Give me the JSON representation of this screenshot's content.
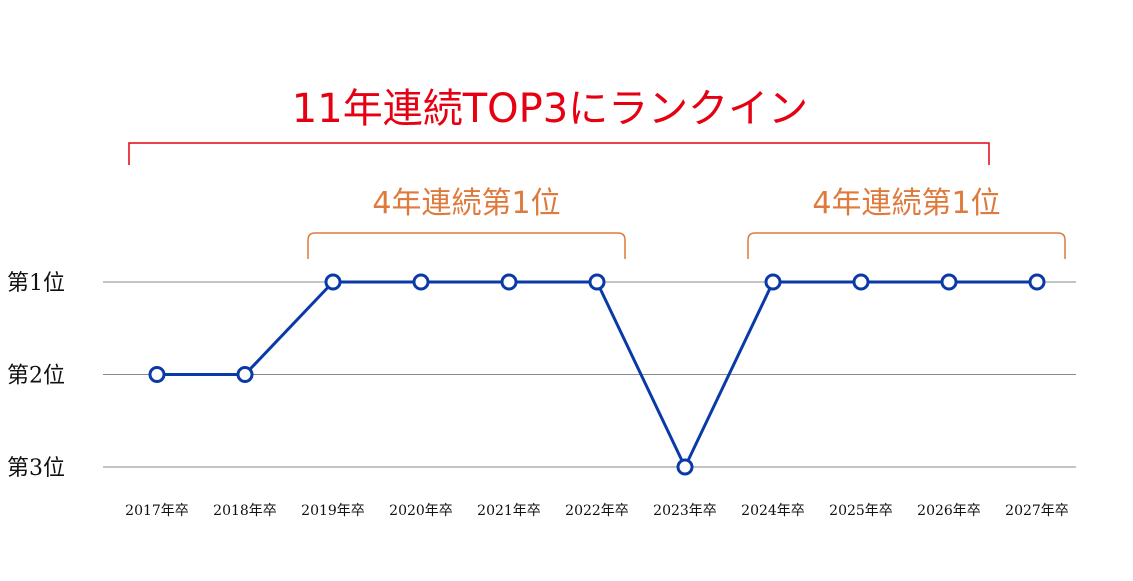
{
  "chart_data": {
    "type": "line",
    "title": "11年連続TOP3にランクイン",
    "categories": [
      "2017年卒",
      "2018年卒",
      "2019年卒",
      "2020年卒",
      "2021年卒",
      "2022年卒",
      "2023年卒",
      "2024年卒",
      "2025年卒",
      "2026年卒",
      "2027年卒"
    ],
    "series": [
      {
        "name": "rank",
        "values": [
          2,
          2,
          1,
          1,
          1,
          1,
          3,
          1,
          1,
          1,
          1
        ]
      }
    ],
    "y_axis": {
      "ticks": [
        1,
        2,
        3
      ],
      "tick_labels": [
        "第1位",
        "第2位",
        "第3位"
      ],
      "ylim": [
        1,
        3
      ]
    },
    "annotations": [
      {
        "text": "4年連続第1位",
        "from_index": 2,
        "to_index": 5
      },
      {
        "text": "4年連続第1位",
        "from_index": 7,
        "to_index": 10
      }
    ],
    "colors": {
      "line": "#0a3aa8",
      "point_fill": "#ffffff",
      "title": "#e60012",
      "annotation": "#df7a3d",
      "grid": "#8a8a8a"
    }
  }
}
